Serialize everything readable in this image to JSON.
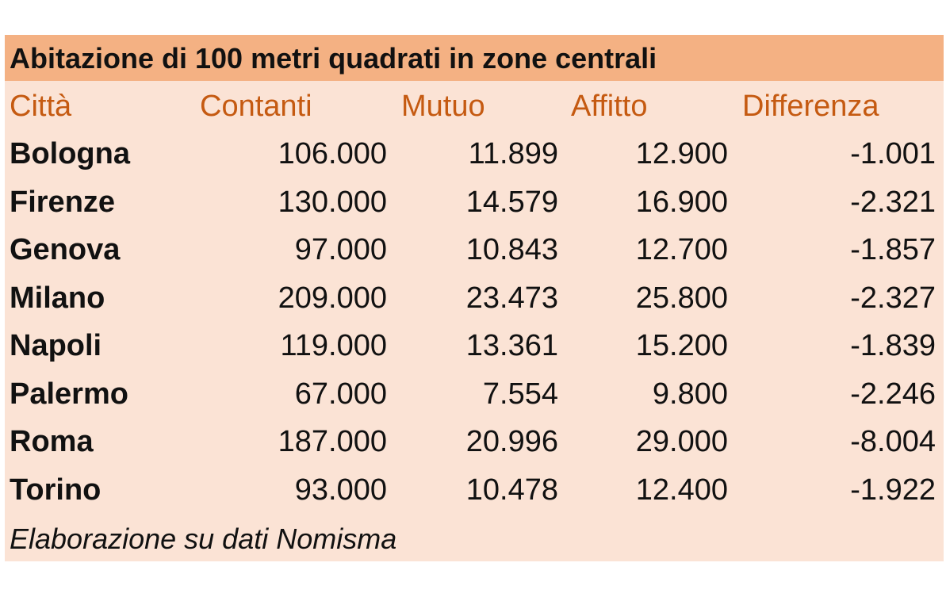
{
  "chart_data": {
    "type": "table",
    "title": "Abitazione di 100 metri quadrati  in zone centrali",
    "columns": [
      "Città",
      "Contanti",
      "Mutuo",
      "Affitto",
      "Differenza"
    ],
    "rows": [
      {
        "city": "Bologna",
        "contanti": "106.000",
        "mutuo": "11.899",
        "affitto": "12.900",
        "differenza": "-1.001"
      },
      {
        "city": "Firenze",
        "contanti": "130.000",
        "mutuo": "14.579",
        "affitto": "16.900",
        "differenza": "-2.321"
      },
      {
        "city": "Genova",
        "contanti": "97.000",
        "mutuo": "10.843",
        "affitto": "12.700",
        "differenza": "-1.857"
      },
      {
        "city": "Milano",
        "contanti": "209.000",
        "mutuo": "23.473",
        "affitto": "25.800",
        "differenza": "-2.327"
      },
      {
        "city": "Napoli",
        "contanti": "119.000",
        "mutuo": "13.361",
        "affitto": "15.200",
        "differenza": "-1.839"
      },
      {
        "city": "Palermo",
        "contanti": "67.000",
        "mutuo": "7.554",
        "affitto": "9.800",
        "differenza": "-2.246"
      },
      {
        "city": "Roma",
        "contanti": "187.000",
        "mutuo": "20.996",
        "affitto": "29.000",
        "differenza": "-8.004"
      },
      {
        "city": "Torino",
        "contanti": "93.000",
        "mutuo": "10.478",
        "affitto": "12.400",
        "differenza": "-1.922"
      }
    ],
    "source": "Elaborazione su dati Nomisma"
  },
  "colors": {
    "title_background": "#f4b183",
    "table_background": "#fbe3d5",
    "header_text": "#c55a11",
    "body_text": "#111111"
  }
}
